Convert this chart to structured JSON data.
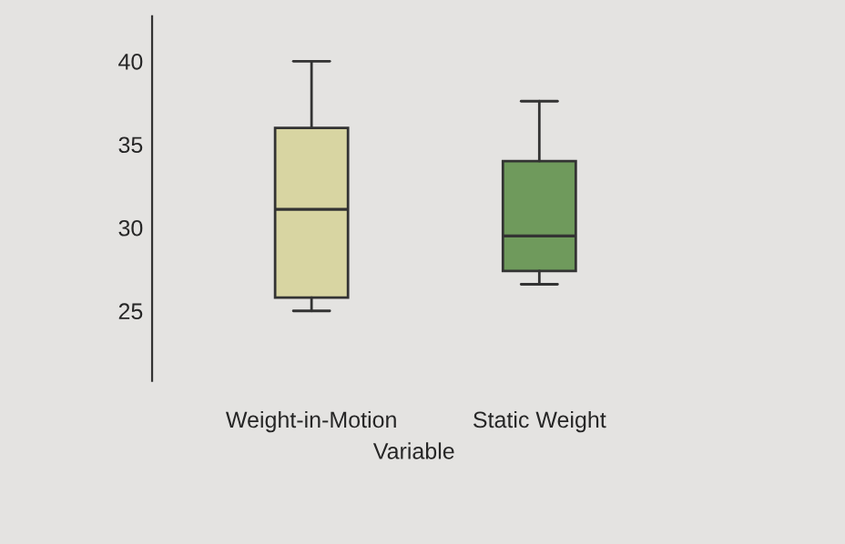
{
  "chart_data": {
    "type": "box",
    "xlabel": "Variable",
    "categories": [
      "Weight-in-Motion",
      "Static Weight"
    ],
    "colors": [
      "#d8d5a2",
      "#6f9a5c"
    ],
    "boxes": [
      {
        "low": 25,
        "q1": 25.8,
        "median": 31.1,
        "q3": 36,
        "high": 40
      },
      {
        "low": 26.6,
        "q1": 27.4,
        "median": 29.5,
        "q3": 34,
        "high": 37.6
      }
    ],
    "ylim": [
      20.8,
      42.7
    ],
    "yticks": [
      25,
      30,
      35,
      40
    ],
    "grid": false
  }
}
